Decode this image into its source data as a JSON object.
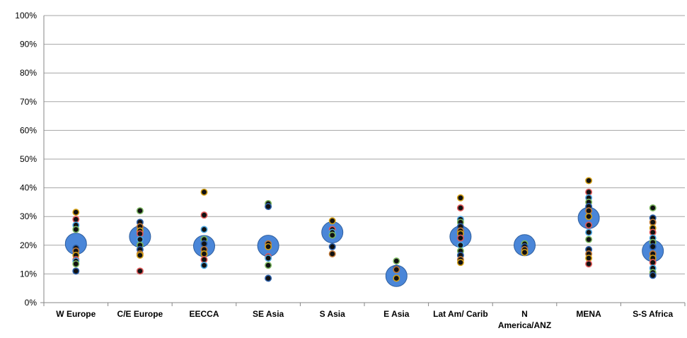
{
  "chart_data": {
    "type": "scatter",
    "title": "",
    "xlabel": "",
    "ylabel": "",
    "ylim": [
      0,
      100
    ],
    "y_tick_labels": [
      "0%",
      "10%",
      "20%",
      "30%",
      "40%",
      "50%",
      "60%",
      "70%",
      "80%",
      "90%",
      "100%"
    ],
    "categories": [
      [
        "W Europe"
      ],
      [
        "C/E Europe"
      ],
      [
        "EECCA"
      ],
      [
        "SE Asia"
      ],
      [
        "S Asia"
      ],
      [
        "E Asia"
      ],
      [
        "Lat Am/ Carib"
      ],
      [
        "N",
        "America/ANZ"
      ],
      [
        "MENA"
      ],
      [
        "S-S Africa"
      ]
    ],
    "grid": true,
    "legend": "none",
    "colors": {
      "average": "#4a86d8",
      "average_stroke": "#2f5f9f",
      "point_fill": "#111111",
      "point_rim": [
        "#d4a017",
        "#e05a5a",
        "#4da6e0",
        "#7bb661",
        "#2b5fa8",
        "#c07a3a"
      ],
      "gridline": "#a6a6a6",
      "axis": "#868686"
    },
    "averages": [
      20.5,
      23,
      19.7,
      19.8,
      24.5,
      9.3,
      23,
      20,
      29.5,
      18
    ],
    "points": [
      [
        31.5,
        29,
        27,
        25.5,
        19,
        18,
        16.5,
        15,
        14.5,
        13.5,
        11
      ],
      [
        32,
        28,
        26.5,
        25,
        24,
        22,
        20,
        18.5,
        17,
        16.5,
        11
      ],
      [
        38.5,
        30.5,
        25.5,
        22,
        20.5,
        18.5,
        17,
        15,
        13
      ],
      [
        34.5,
        33.5,
        20.5,
        19.5,
        16,
        15.5,
        13,
        8.5
      ],
      [
        28.5,
        25.5,
        24.5,
        23.5,
        19.5,
        17
      ],
      [
        14.5,
        12,
        11.5,
        8.5
      ],
      [
        36.5,
        33,
        29,
        28,
        26.5,
        25,
        24,
        22.5,
        20,
        18,
        16.5,
        15,
        14
      ],
      [
        20.5,
        19.5,
        18.5,
        17.5
      ],
      [
        42.5,
        38.5,
        36.5,
        35,
        33.5,
        32,
        30,
        27,
        24.5,
        22,
        18.5,
        17,
        15.5,
        13.5
      ],
      [
        33,
        29.5,
        28,
        26,
        24.5,
        22.5,
        21,
        19.5,
        17,
        15.5,
        14,
        12,
        10.5,
        9.5
      ]
    ]
  }
}
